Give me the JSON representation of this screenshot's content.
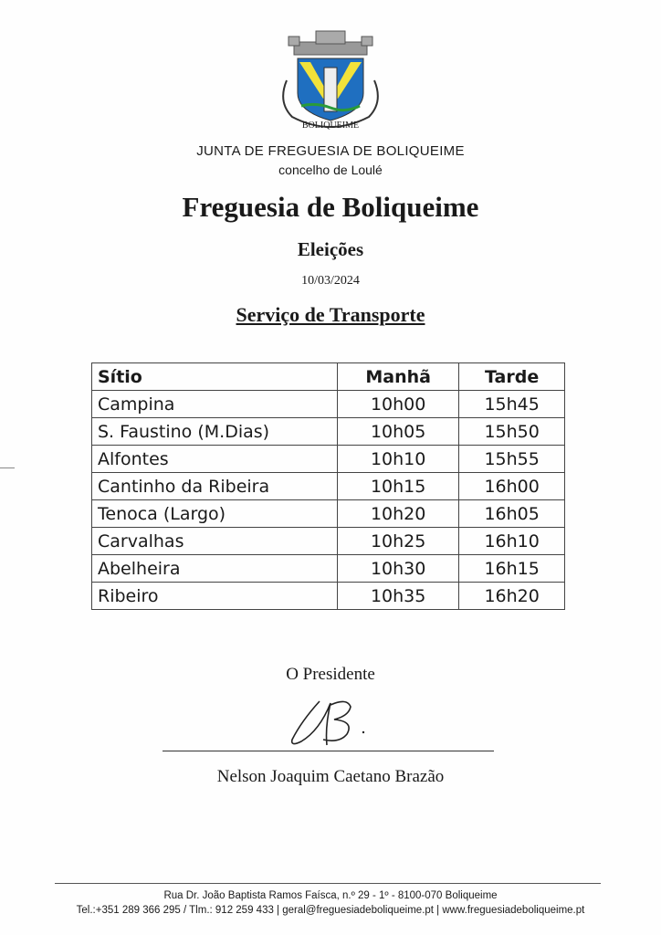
{
  "header": {
    "crest_label": "BOLIQUEIME",
    "organization": "JUNTA DE FREGUESIA DE BOLIQUEIME",
    "municipality": "concelho de Loulé",
    "title": "Freguesia de Boliqueime",
    "subtitle": "Eleições",
    "date": "10/03/2024",
    "section": "Serviço de Transporte"
  },
  "table": {
    "headers": [
      "Sítio",
      "Manhã",
      "Tarde"
    ],
    "rows": [
      [
        "Campina",
        "10h00",
        "15h45"
      ],
      [
        "S. Faustino (M.Dias)",
        "10h05",
        "15h50"
      ],
      [
        "Alfontes",
        "10h10",
        "15h55"
      ],
      [
        "Cantinho da Ribeira",
        "10h15",
        "16h00"
      ],
      [
        "Tenoca (Largo)",
        "10h20",
        "16h05"
      ],
      [
        "Carvalhas",
        "10h25",
        "16h10"
      ],
      [
        "Abelheira",
        "10h30",
        "16h15"
      ],
      [
        "Ribeiro",
        "10h35",
        "16h20"
      ]
    ]
  },
  "signature": {
    "role": "O Presidente",
    "name": "Nelson Joaquim Caetano Brazão"
  },
  "footer": {
    "address": "Rua Dr. João Baptista Ramos Faísca, n.º 29 - 1º - 8100-070 Boliqueime",
    "contacts": "Tel.:+351 289 366 295 / Tlm.: 912 259 433 | geral@freguesiadeboliqueime.pt | www.freguesiadeboliqueime.pt"
  },
  "colors": {
    "shield_blue": "#1f6fc0",
    "shield_yellow": "#f2e23a",
    "crown_gray": "#8a8a8a"
  }
}
